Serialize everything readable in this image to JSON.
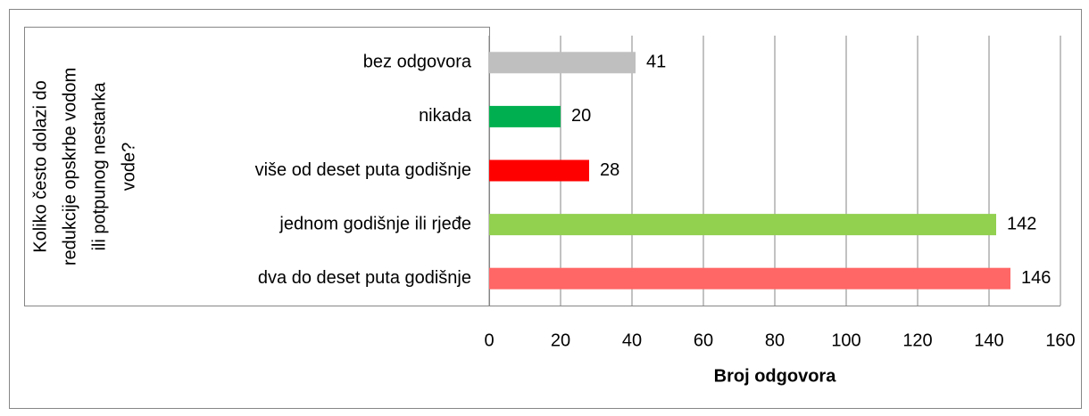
{
  "chart_data": {
    "type": "bar",
    "orientation": "horizontal",
    "ylabel": [
      "Koliko često dolazi do",
      "redukcije opskrbe vodom",
      "ili potpunog nestanka",
      "vode?"
    ],
    "xlabel": "Broj odgovora",
    "categories": [
      "bez odgovora",
      "nikada",
      "više od deset puta godišnje",
      "jednom godišnje ili rjeđe",
      "dva do deset puta godišnje"
    ],
    "values": [
      41,
      20,
      28,
      142,
      146
    ],
    "colors": [
      "#bfbfbf",
      "#00b050",
      "#ff0000",
      "#92d050",
      "#ff6666"
    ],
    "xlim": [
      0,
      160
    ],
    "xticks": [
      0,
      20,
      40,
      60,
      80,
      100,
      120,
      140,
      160
    ],
    "grid": true
  }
}
